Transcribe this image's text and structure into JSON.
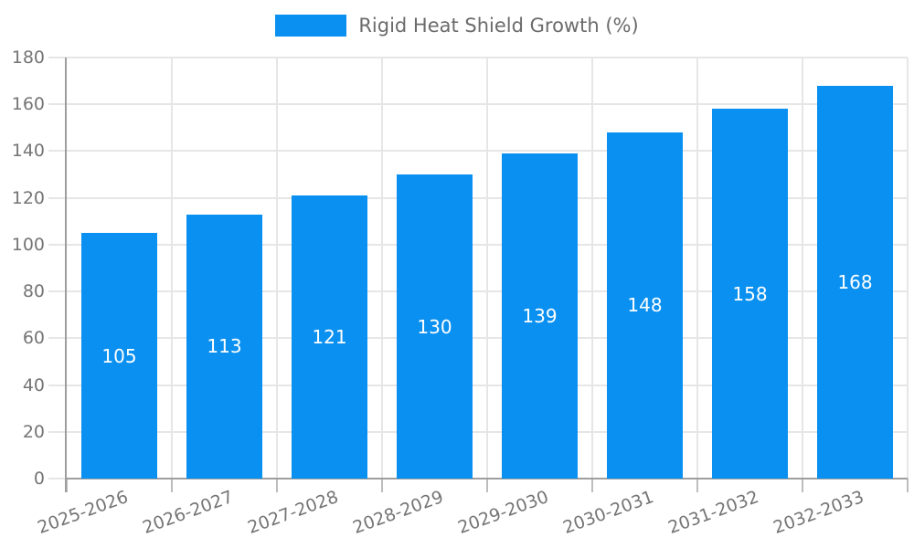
{
  "legend": {
    "label": "Rigid Heat Shield Growth (%)"
  },
  "chart_data": {
    "type": "bar",
    "title": "Rigid Heat Shield Growth (%)",
    "series_name": "Rigid Heat Shield Growth (%)",
    "categories": [
      "2025-2026",
      "2026-2027",
      "2027-2028",
      "2028-2029",
      "2029-2030",
      "2030-2031",
      "2031-2032",
      "2032-2033"
    ],
    "values": [
      105,
      113,
      121,
      130,
      139,
      148,
      158,
      168
    ],
    "value_labels": [
      "105",
      "113",
      "121",
      "130",
      "139",
      "148",
      "158",
      "168"
    ],
    "xlabel": "",
    "ylabel": "",
    "ylim": [
      0,
      180
    ],
    "ytick_step": 20,
    "ytick_labels": [
      "0",
      "20",
      "40",
      "60",
      "80",
      "100",
      "120",
      "140",
      "160",
      "180"
    ],
    "grid": true,
    "legend_position": "top-center",
    "x_label_rotation_deg": -20,
    "colors": {
      "bar": "#0a90f0",
      "value_label": "#ffffff",
      "grid": "#e6e6e6",
      "axis": "#9e9e9e",
      "tick_stub": "#bdbdbd",
      "tick_label": "#757575",
      "legend_text": "#6b6b6b"
    }
  }
}
